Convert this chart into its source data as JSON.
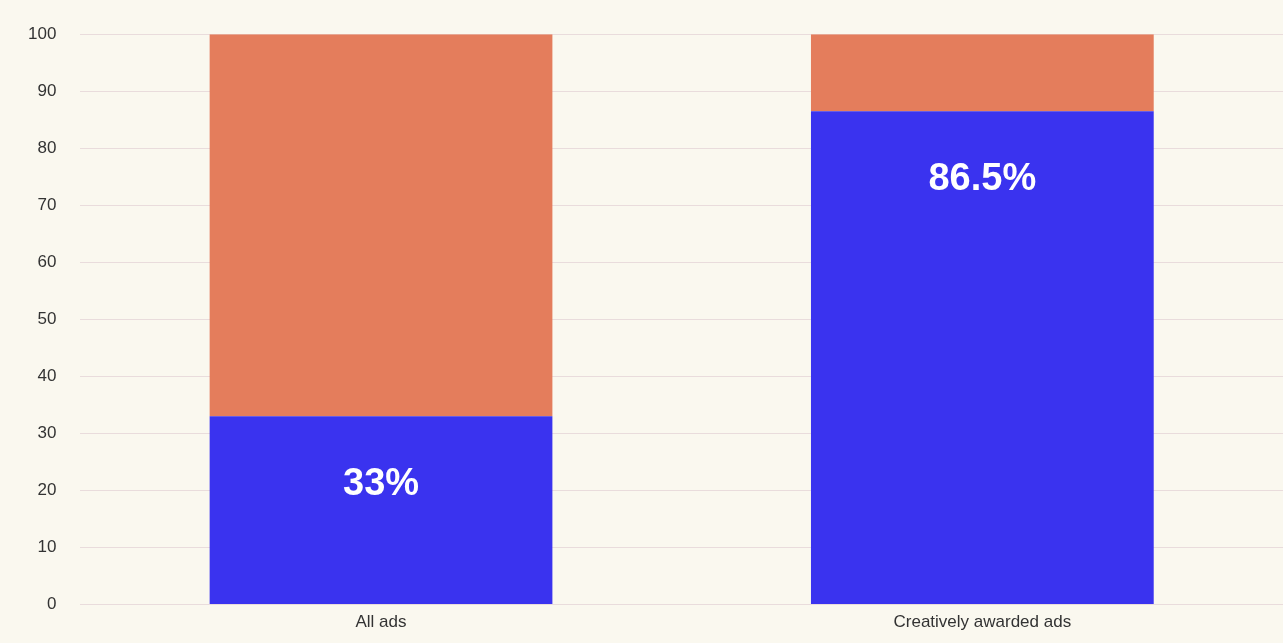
{
  "chart_data": {
    "type": "bar",
    "stacked": true,
    "categories": [
      "All ads",
      "Creatively awarded ads"
    ],
    "series": [
      {
        "color": "#3a33ef",
        "values": [
          33,
          86.5
        ],
        "value_labels": [
          "33%",
          "86.5%"
        ]
      },
      {
        "color": "#e47d5c",
        "values": [
          67,
          13.5
        ]
      }
    ],
    "ylim": [
      0,
      100
    ],
    "yticks": [
      0,
      10,
      20,
      30,
      40,
      50,
      60,
      70,
      80,
      90,
      100
    ],
    "grid": "y",
    "legend": false
  }
}
